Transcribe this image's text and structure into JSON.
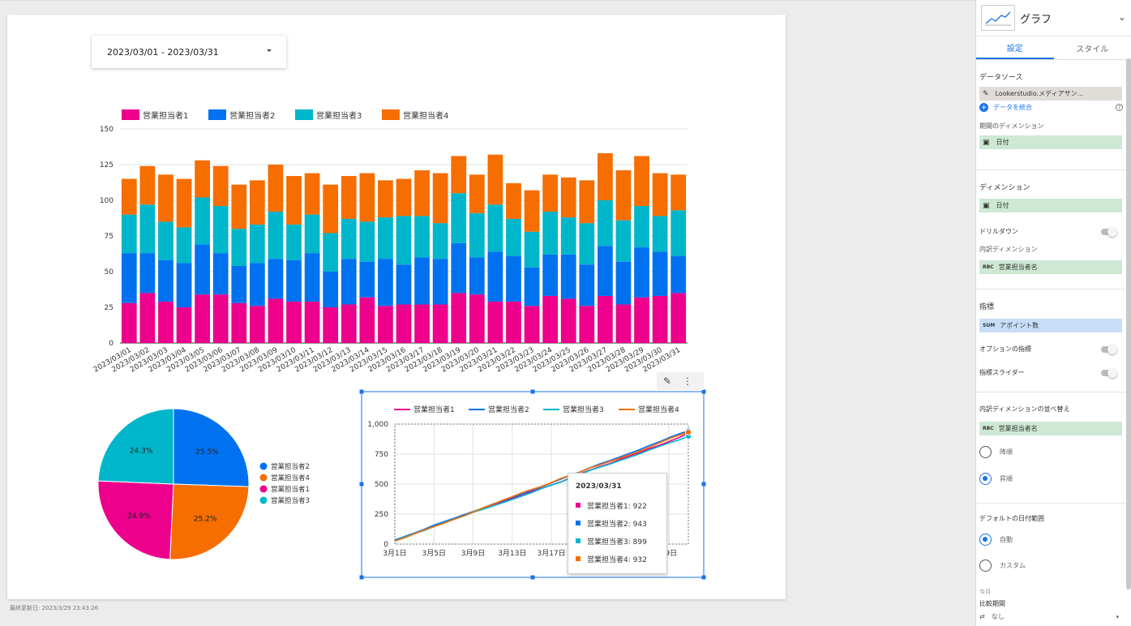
{
  "report": {
    "date_range": "2023/03/01 - 2023/03/31",
    "last_updated": "最終更新日: 2023/3/29 23:43:26"
  },
  "colors": {
    "s1": "#ec008c",
    "s2": "#0072f0",
    "s3": "#00b6cb",
    "s4": "#f66d00"
  },
  "chart_data": [
    {
      "type": "bar",
      "stacked": true,
      "categories": [
        "2023/03/01",
        "2023/03/02",
        "2023/03/03",
        "2023/03/04",
        "2023/03/05",
        "2023/03/06",
        "2023/03/07",
        "2023/03/08",
        "2023/03/09",
        "2023/03/10",
        "2023/03/11",
        "2023/03/12",
        "2023/03/13",
        "2023/03/14",
        "2023/03/15",
        "2023/03/16",
        "2023/03/17",
        "2023/03/18",
        "2023/03/19",
        "2023/03/20",
        "2023/03/21",
        "2023/03/22",
        "2023/03/23",
        "2023/03/24",
        "2023/03/25",
        "2023/03/26",
        "2023/03/27",
        "2023/03/28",
        "2023/03/29",
        "2023/03/30",
        "2023/03/31"
      ],
      "series": [
        {
          "name": "営業担当者1",
          "values": [
            28,
            35,
            29,
            25,
            34,
            34,
            28,
            26,
            31,
            29,
            29,
            25,
            27,
            32,
            26,
            27,
            27,
            27,
            35,
            34,
            29,
            29,
            26,
            33,
            31,
            26,
            33,
            27,
            32,
            33,
            35
          ]
        },
        {
          "name": "営業担当者2",
          "values": [
            35,
            28,
            29,
            31,
            35,
            29,
            26,
            30,
            28,
            29,
            34,
            25,
            32,
            25,
            33,
            28,
            33,
            32,
            35,
            26,
            35,
            32,
            27,
            29,
            31,
            29,
            35,
            30,
            35,
            31,
            26
          ]
        },
        {
          "name": "営業担当者3",
          "values": [
            27,
            34,
            27,
            25,
            33,
            33,
            26,
            27,
            33,
            25,
            27,
            27,
            28,
            28,
            29,
            34,
            29,
            25,
            35,
            31,
            33,
            26,
            25,
            30,
            26,
            29,
            32,
            29,
            29,
            25,
            32
          ]
        },
        {
          "name": "営業担当者4",
          "values": [
            25,
            27,
            33,
            34,
            26,
            28,
            31,
            31,
            33,
            34,
            29,
            34,
            30,
            34,
            26,
            26,
            32,
            35,
            26,
            27,
            35,
            25,
            29,
            26,
            28,
            30,
            33,
            35,
            35,
            30,
            25
          ]
        }
      ],
      "yticks": [
        "0",
        "25",
        "50",
        "75",
        "100",
        "125",
        "150"
      ],
      "ylim": [
        0,
        150
      ]
    },
    {
      "type": "pie",
      "slices": [
        {
          "name": "営業担当者2",
          "value": 25.5,
          "label": "25.5%"
        },
        {
          "name": "営業担当者4",
          "value": 25.2,
          "label": "25.2%"
        },
        {
          "name": "営業担当者1",
          "value": 24.9,
          "label": "24.9%"
        },
        {
          "name": "営業担当者3",
          "value": 24.3,
          "label": "24.3%"
        }
      ]
    },
    {
      "type": "line",
      "cumulative": true,
      "legend": [
        "営業担当者1",
        "営業担当者2",
        "営業担当者3",
        "営業担当者4"
      ],
      "yticks": [
        "0",
        "250",
        "500",
        "750",
        "1,000"
      ],
      "ylim": [
        0,
        1000
      ],
      "xticks": [
        {
          "label": "3月1日",
          "day": 1
        },
        {
          "label": "3月5日",
          "day": 5
        },
        {
          "label": "3月9日",
          "day": 9
        },
        {
          "label": "3月13日",
          "day": 13
        },
        {
          "label": "3月17日",
          "day": 17
        },
        {
          "label": "29日",
          "day": 29
        }
      ],
      "final_values": [
        922,
        943,
        899,
        932
      ],
      "tooltip": {
        "title": "2023/03/31",
        "rows": [
          "営業担当者1: 922",
          "営業担当者2: 943",
          "営業担当者3: 899",
          "営業担当者4: 932"
        ]
      }
    }
  ],
  "panel": {
    "chart_type": "グラフ",
    "tabs": [
      "設定",
      "スタイル"
    ],
    "data_source_title": "データソース",
    "data_source": "Lookerstudio.メディアサン...",
    "blend_data": "データを統合",
    "period_dimension": "期間のディメンション",
    "period_field": "日付",
    "dimension_title": "ディメンション",
    "dimension_field": "日付",
    "drilldown": "ドリルダウン",
    "breakdown_dimension": "内訳ディメンション",
    "breakdown_field": "営業担当者名",
    "breakdown_tag": "RBC",
    "metric_title": "指標",
    "metric_tag": "SUM",
    "metric_field": "アポイント数",
    "optional_metrics": "オプションの指標",
    "metric_slider": "指標スライダー",
    "sort_title": "内訳ディメンションの並べ替え",
    "sort_field": "営業担当者名",
    "sort_desc": "降順",
    "sort_asc": "昇順",
    "default_date_title": "デフォルトの日付範囲",
    "auto": "自動",
    "custom": "カスタム",
    "this_month": "今月",
    "compare_period": "比較期間",
    "compare_value": "なし"
  }
}
